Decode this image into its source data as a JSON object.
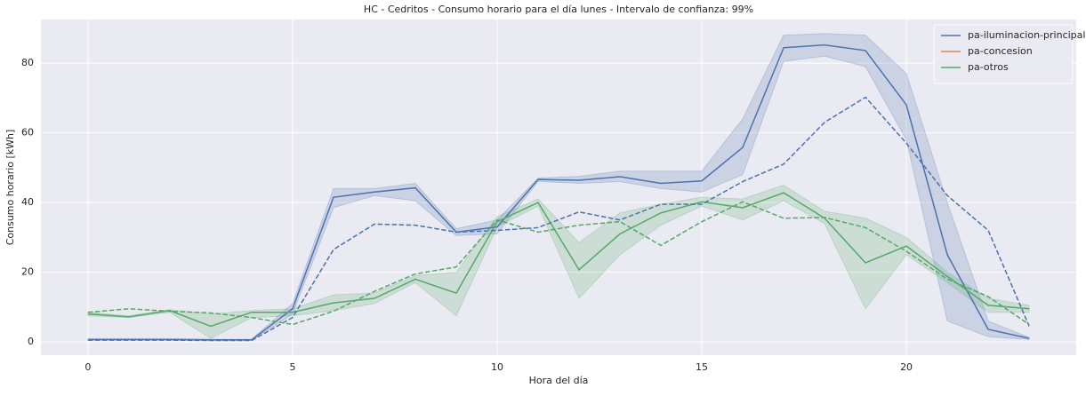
{
  "chart_data": {
    "type": "line",
    "title": "HC - Cedritos - Consumo horario para el día lunes - Intervalo de confianza: 99%",
    "xlabel": "Hora del día",
    "ylabel": "Consumo horario [kWh]",
    "x": [
      0,
      1,
      2,
      3,
      4,
      5,
      6,
      7,
      8,
      9,
      10,
      11,
      12,
      13,
      14,
      15,
      16,
      17,
      18,
      19,
      20,
      21,
      22,
      23
    ],
    "xlim": [
      -1.15,
      24.15
    ],
    "xticks": [
      0,
      5,
      10,
      15,
      20
    ],
    "ylim": [
      -3.8,
      92.5
    ],
    "yticks": [
      0,
      20,
      40,
      60,
      80
    ],
    "grid": true,
    "legend": "upper right",
    "series": [
      {
        "name": "pa-iluminacion-principal",
        "color": "#4c72b0",
        "values": [
          0.7,
          0.7,
          0.7,
          0.6,
          0.6,
          9.5,
          41.5,
          43,
          44.2,
          31.5,
          33,
          46.6,
          46.4,
          47.4,
          45.5,
          46.2,
          55.8,
          84.4,
          85.2,
          83.6,
          68,
          25,
          3.6,
          1
        ],
        "ci_lower": [
          0.5,
          0.5,
          0.5,
          0.4,
          0.4,
          8,
          38.5,
          42,
          40.5,
          30.5,
          31,
          46,
          45.5,
          46,
          44,
          43,
          48,
          80.5,
          82,
          79,
          58,
          6,
          1.5,
          0.7
        ],
        "ci_upper": [
          0.9,
          0.9,
          0.9,
          0.8,
          0.8,
          11,
          44,
          44,
          45.5,
          32.5,
          35,
          47,
          47.5,
          49,
          49,
          49,
          64,
          88,
          88.5,
          88,
          77,
          40,
          6,
          1.3
        ]
      },
      {
        "name": "pa-concesion",
        "color": "#dd8452"
      },
      {
        "name": "pa-otros",
        "color": "#55a868",
        "values": [
          8,
          7.2,
          9,
          4.5,
          8.5,
          8.5,
          11.2,
          12.5,
          18,
          14,
          34.5,
          40,
          20.7,
          31,
          37,
          40.2,
          38.5,
          42.8,
          35.5,
          22.7,
          27.5,
          18.8,
          10.5,
          9.5
        ],
        "ci_lower": [
          7.5,
          7,
          8.5,
          1,
          7,
          7.5,
          9,
          11,
          17,
          7.5,
          33,
          39,
          12.5,
          25,
          33.5,
          39,
          35,
          40.5,
          34,
          9.5,
          25,
          17,
          8.5,
          8.5
        ],
        "ci_upper": [
          8.5,
          7.5,
          9.3,
          8,
          9,
          9.5,
          13.5,
          14,
          19,
          20,
          36,
          41,
          28.5,
          37,
          39.5,
          41.5,
          41,
          45,
          37.5,
          35.5,
          30,
          20,
          12.5,
          10.5
        ]
      },
      {
        "color": "#4c72b0",
        "linestyle": "dashed",
        "values": [
          0.5,
          0.5,
          0.5,
          0.4,
          0.4,
          7,
          26.5,
          33.8,
          33.5,
          31.5,
          32,
          32.8,
          37.3,
          35,
          39.5,
          39.5,
          46,
          51,
          63,
          70.2,
          57,
          42,
          32,
          4.5
        ]
      },
      {
        "color": "#55a868",
        "linestyle": "dashed",
        "values": [
          8.5,
          9.5,
          8.8,
          8.3,
          7,
          5,
          8.8,
          14.5,
          19.5,
          21.5,
          35,
          31.5,
          33.5,
          34.5,
          27.7,
          34.5,
          40.2,
          35.5,
          35.7,
          32.8,
          26,
          18,
          13,
          5
        ]
      }
    ]
  }
}
